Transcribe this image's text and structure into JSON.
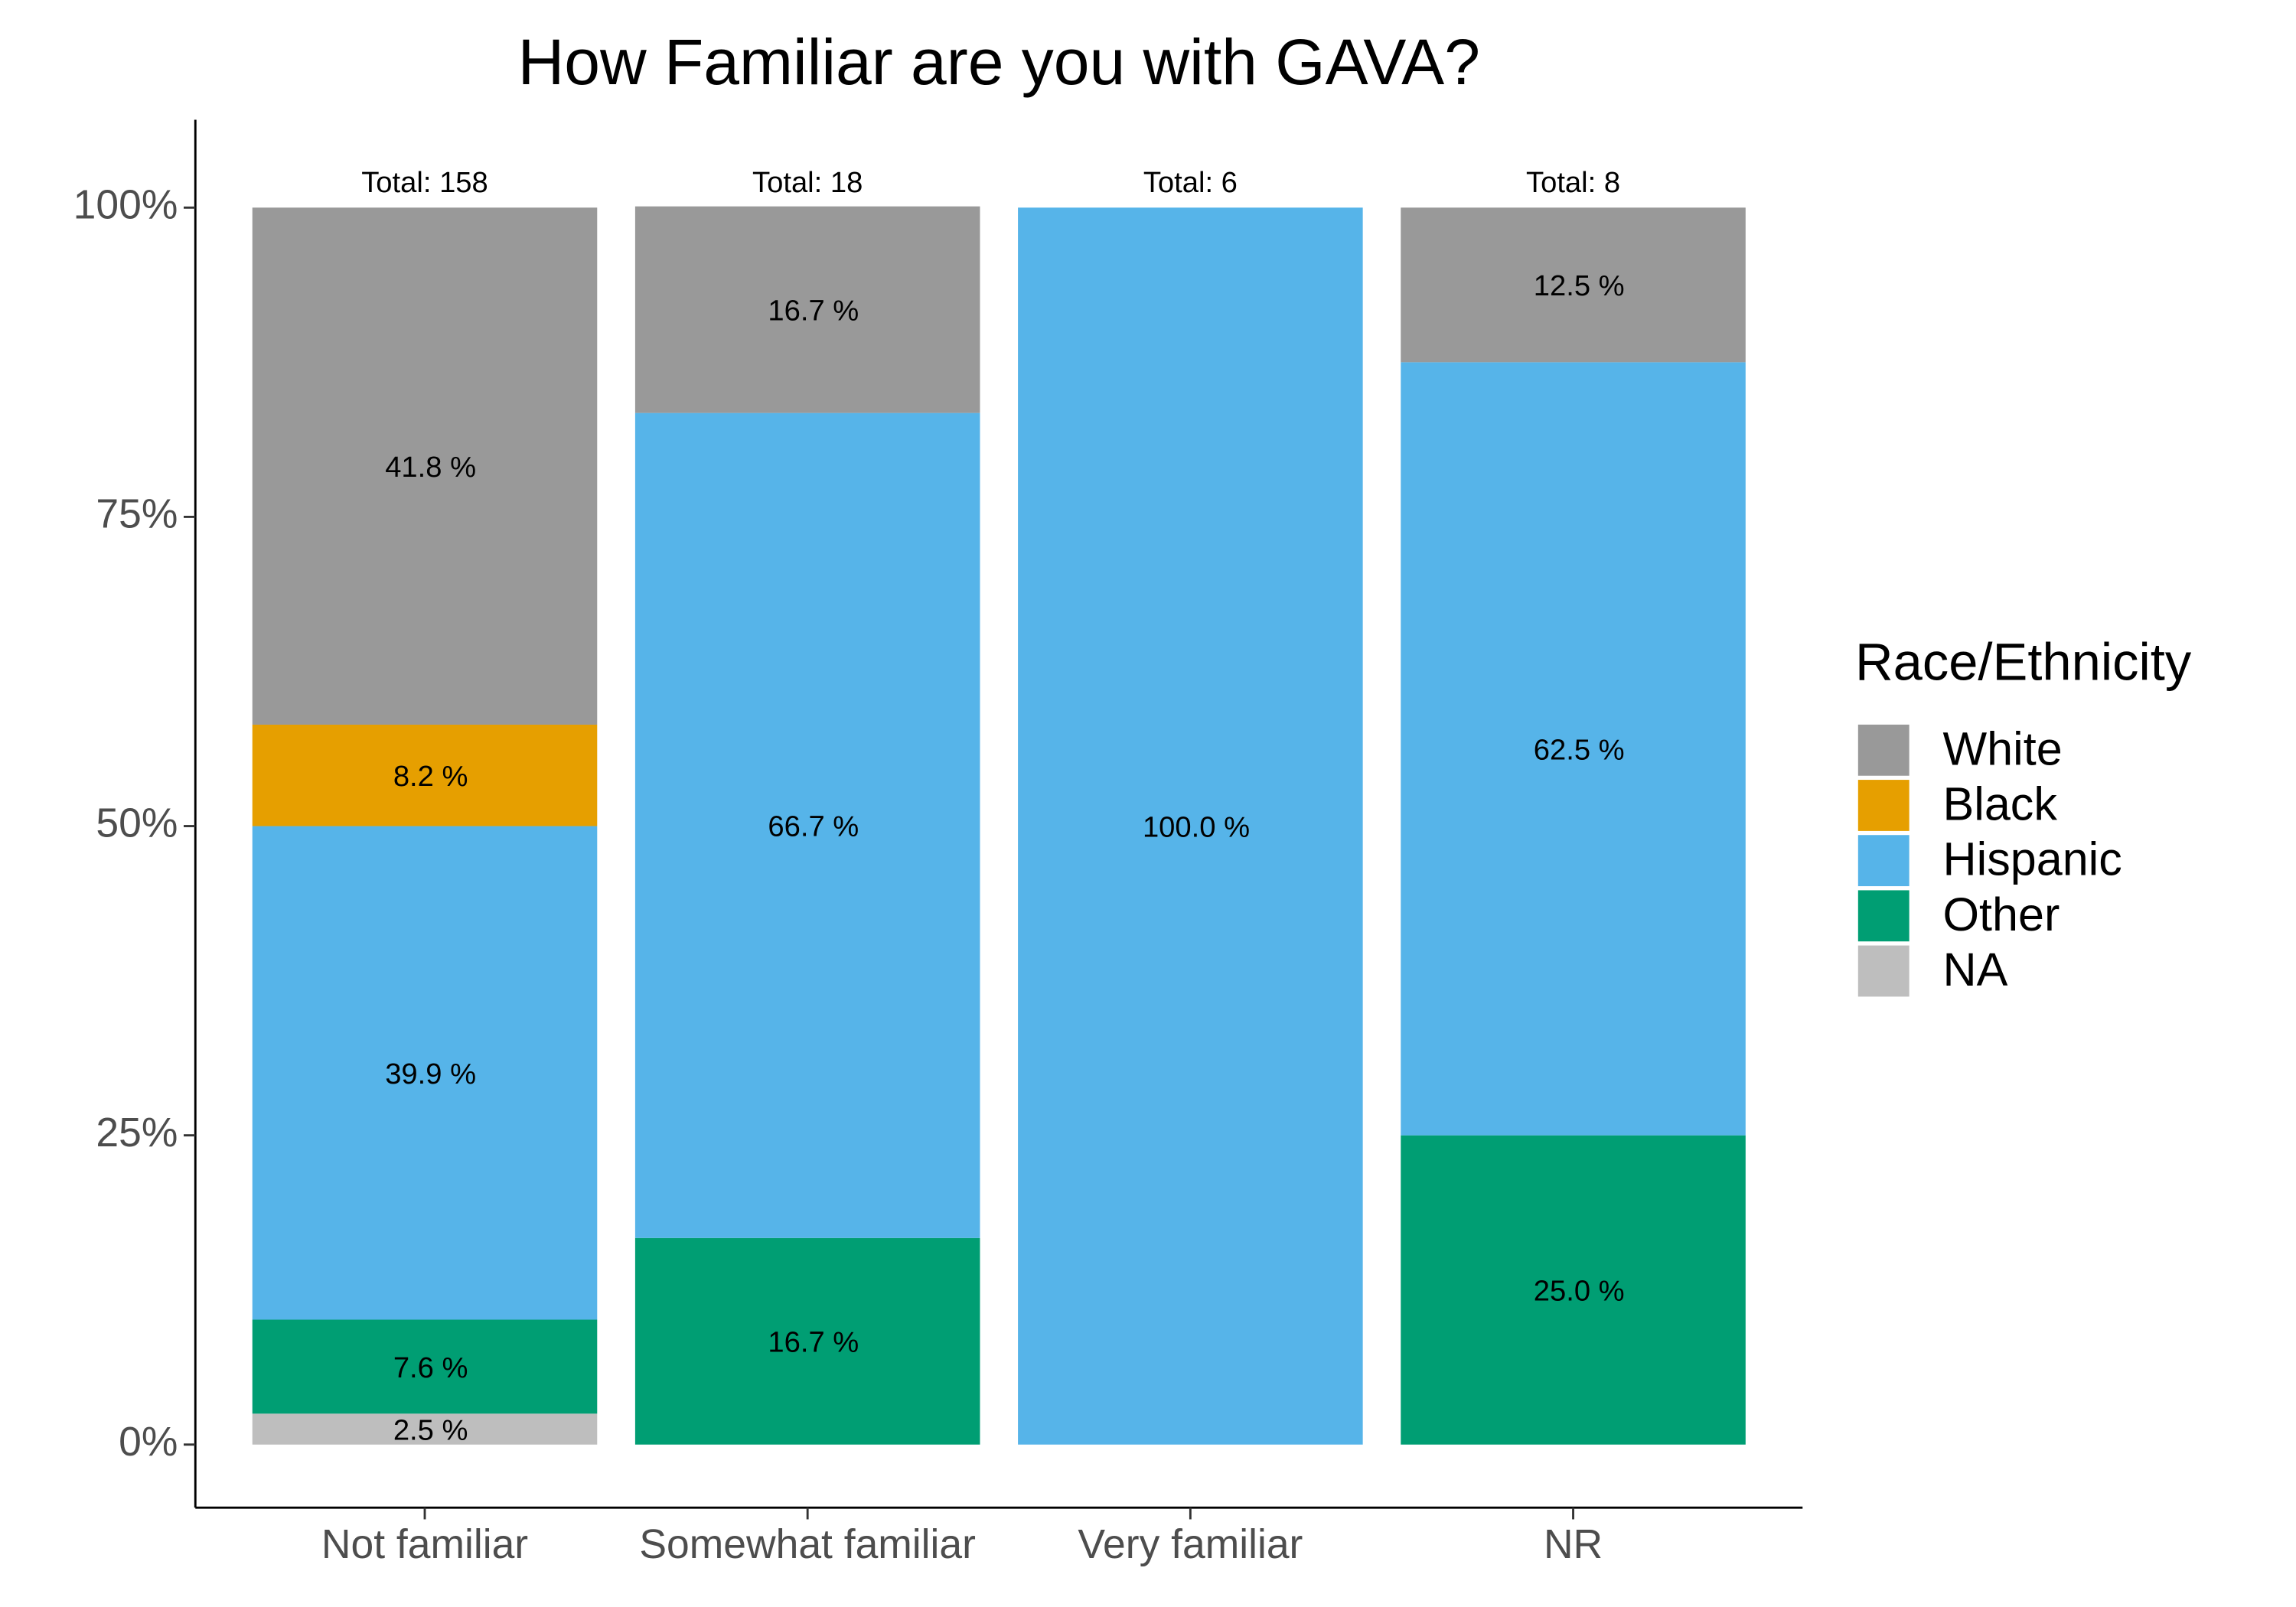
{
  "chart_data": {
    "type": "stacked_bar",
    "title": "How Familiar are you with GAVA?",
    "categories": [
      "Not familiar",
      "Somewhat familiar",
      "Very familiar",
      "NR"
    ],
    "annotations": [
      "Total:  158",
      "Total:  18",
      "Total:  6",
      "Total:  8"
    ],
    "legend_title": "Race/Ethnicity",
    "legend": "right",
    "series": [
      {
        "name": "White",
        "color": "#999999",
        "values": [
          41.8,
          16.7,
          null,
          12.5
        ],
        "value_labels": [
          "41.8 %",
          "16.7 %",
          null,
          "12.5 %"
        ]
      },
      {
        "name": "Black",
        "color": "#E69F00",
        "values": [
          8.2,
          null,
          null,
          null
        ],
        "value_labels": [
          "8.2 %",
          null,
          null,
          null
        ]
      },
      {
        "name": "Hispanic",
        "color": "#56B4E9",
        "values": [
          39.9,
          66.7,
          100.0,
          62.5
        ],
        "value_labels": [
          "39.9 %",
          "66.7 %",
          "100.0 %",
          "62.5 %"
        ]
      },
      {
        "name": "Other",
        "color": "#009E73",
        "values": [
          7.6,
          16.7,
          null,
          25.0
        ],
        "value_labels": [
          "7.6 %",
          "16.7 %",
          null,
          "25.0 %"
        ]
      },
      {
        "name": "NA",
        "color": "#BEBEBE",
        "values": [
          2.5,
          null,
          null,
          null
        ],
        "value_labels": [
          "2.5 %",
          null,
          null,
          null
        ]
      }
    ],
    "ylim": [
      -5.1,
      107.1
    ],
    "yticks": [
      {
        "value": 0,
        "label": "0%"
      },
      {
        "value": 25,
        "label": "25%"
      },
      {
        "value": 50,
        "label": "50%"
      },
      {
        "value": 75,
        "label": "75%"
      },
      {
        "value": 100,
        "label": "100%"
      }
    ],
    "grid": false
  }
}
